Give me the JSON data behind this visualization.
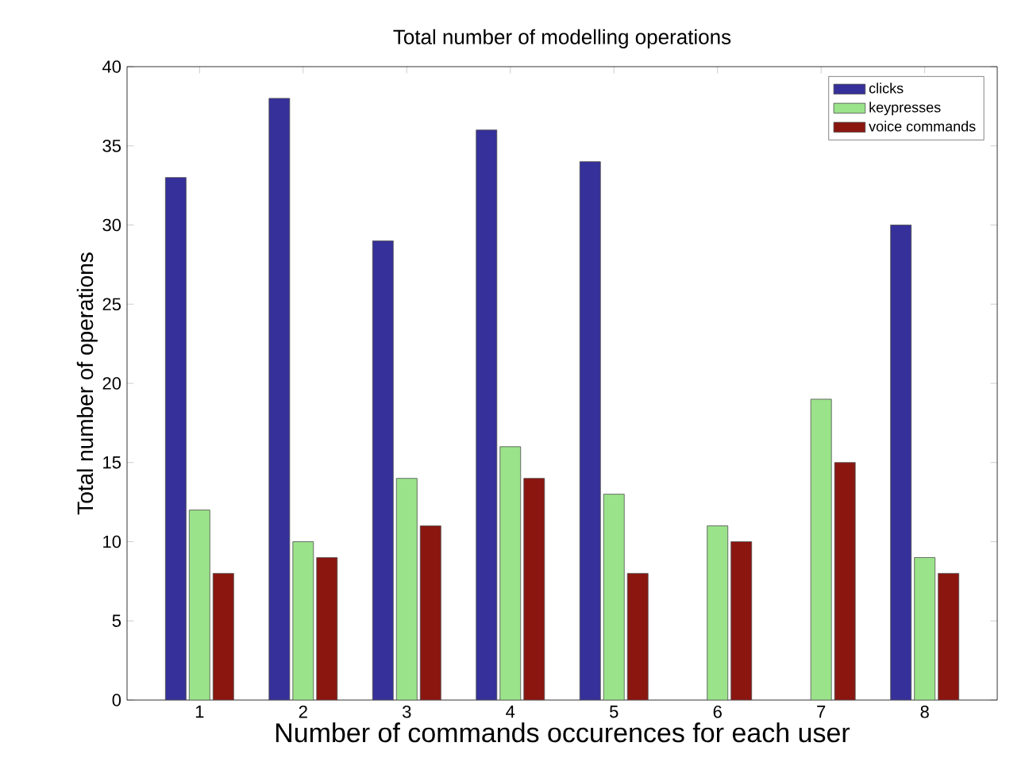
{
  "chart_data": {
    "type": "bar",
    "title": "Total number of modelling operations",
    "xlabel": "Number of commands occurences for each user",
    "ylabel": "Total number of operations",
    "categories": [
      "1",
      "2",
      "3",
      "4",
      "5",
      "6",
      "7",
      "8"
    ],
    "series": [
      {
        "name": "clicks",
        "color": "#36309a",
        "values": [
          33,
          38,
          29,
          36,
          34,
          null,
          null,
          30
        ]
      },
      {
        "name": "keypresses",
        "color": "#9be38a",
        "values": [
          12,
          10,
          14,
          16,
          13,
          11,
          19,
          9
        ]
      },
      {
        "name": "voice commands",
        "color": "#8b1610",
        "values": [
          8,
          9,
          11,
          14,
          8,
          10,
          15,
          8
        ]
      }
    ],
    "ylim": [
      0,
      40
    ],
    "yticks": [
      0,
      5,
      10,
      15,
      20,
      25,
      30,
      35,
      40
    ],
    "legend": "top right",
    "grid": false
  }
}
